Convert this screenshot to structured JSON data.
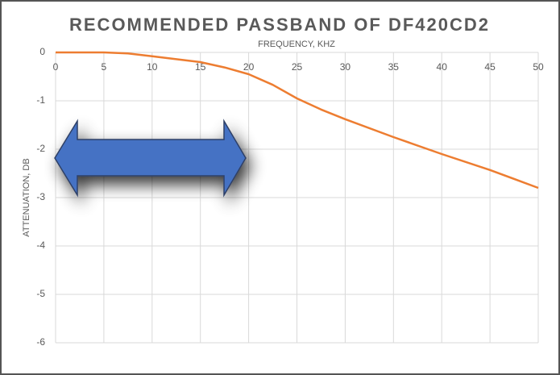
{
  "chart_data": {
    "type": "line",
    "title": "RECOMMENDED PASSBAND OF DF420CD2",
    "x_label": "FREQUENCY, KHZ",
    "y_label": "ATTENUATION, DB",
    "x": [
      0,
      2.5,
      5,
      7.5,
      10,
      12.5,
      15,
      17.5,
      20,
      22.5,
      25,
      27.5,
      30,
      35,
      40,
      45,
      50
    ],
    "series": [
      {
        "name": "Attenuation",
        "color": "#ed7d31",
        "values": [
          0,
          0,
          0,
          -0.02,
          -0.08,
          -0.14,
          -0.2,
          -0.31,
          -0.45,
          -0.67,
          -0.95,
          -1.18,
          -1.38,
          -1.75,
          -2.1,
          -2.43,
          -2.8
        ]
      }
    ],
    "xlim": [
      0,
      50
    ],
    "xticks": [
      0,
      5,
      10,
      15,
      20,
      25,
      30,
      35,
      40,
      45,
      50
    ],
    "ylim": [
      -6,
      0
    ],
    "yticks": [
      0,
      -1,
      -2,
      -3,
      -4,
      -5,
      -6
    ],
    "grid": true
  }
}
